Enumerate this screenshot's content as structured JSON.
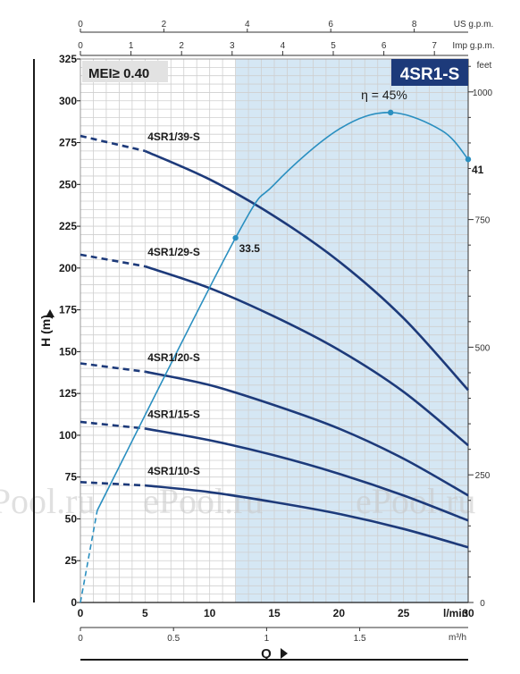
{
  "chart_data": {
    "type": "line",
    "title": "4SR1-S",
    "mei_label": "MEI≥ 0.40",
    "xlabel": "Q",
    "x_unit": "l/min",
    "ylabel": "H (m)",
    "xlim": [
      0,
      30
    ],
    "ylim": [
      0,
      325
    ],
    "x_ticks": [
      "0",
      "5",
      "10",
      "15",
      "20",
      "25",
      "30"
    ],
    "y_ticks": [
      "0",
      "25",
      "50",
      "75",
      "100",
      "125",
      "150",
      "175",
      "200",
      "225",
      "250",
      "275",
      "300",
      "325"
    ],
    "secondary_axes": {
      "us_gpm": {
        "unit": "US g.p.m.",
        "ticks": [
          "0",
          "2",
          "4",
          "6",
          "8"
        ]
      },
      "imp_gpm": {
        "unit": "Imp g.p.m.",
        "ticks": [
          "0",
          "1",
          "2",
          "3",
          "4",
          "5",
          "6",
          "7"
        ]
      },
      "m3h": {
        "unit": "m³/h",
        "ticks": [
          "0",
          "0.5",
          "1",
          "1.5"
        ]
      },
      "feet": {
        "unit": "feet",
        "ticks": [
          "0",
          "250",
          "500",
          "750",
          "1000"
        ]
      }
    },
    "recommended_range": [
      12,
      30
    ],
    "series": [
      {
        "name": "4SR1/39-S",
        "x": [
          0,
          5,
          10,
          15,
          20,
          25,
          30
        ],
        "y": [
          279,
          270,
          253,
          231,
          204,
          170,
          127
        ]
      },
      {
        "name": "4SR1/29-S",
        "x": [
          0,
          5,
          10,
          15,
          20,
          25,
          30
        ],
        "y": [
          208,
          201,
          188,
          171,
          151,
          126,
          94
        ]
      },
      {
        "name": "4SR1/20-S",
        "x": [
          0,
          5,
          10,
          15,
          20,
          25,
          30
        ],
        "y": [
          143,
          138,
          130,
          118,
          104,
          86,
          64
        ]
      },
      {
        "name": "4SR1/15-S",
        "x": [
          0,
          5,
          10,
          15,
          20,
          25,
          30
        ],
        "y": [
          108,
          104,
          97,
          88,
          77,
          64,
          49
        ]
      },
      {
        "name": "4SR1/10-S",
        "x": [
          0,
          5,
          10,
          15,
          20,
          25,
          30
        ],
        "y": [
          72,
          70,
          66,
          60,
          53,
          44,
          33
        ]
      }
    ],
    "efficiency": {
      "label": "η = 45%",
      "points": [
        [
          0,
          0
        ],
        [
          12,
          218
        ],
        [
          15,
          250
        ],
        [
          20,
          283
        ],
        [
          24,
          293
        ],
        [
          28,
          282
        ],
        [
          30,
          265
        ]
      ],
      "markers": [
        {
          "x": 12,
          "y": 218,
          "label": "33.5"
        },
        {
          "x": 24,
          "y": 293,
          "label": ""
        },
        {
          "x": 30,
          "y": 265,
          "label": "41"
        }
      ]
    },
    "grid": true,
    "watermark": "ePool.ru"
  },
  "colors": {
    "head_curve": "#1d3a7a",
    "efficiency_curve": "#2a8fc0",
    "shaded_band": "#d5e7f4",
    "title_bg": "#1d3a7a",
    "grid": "#cfcfcf",
    "axis": "#1a1a1a"
  }
}
